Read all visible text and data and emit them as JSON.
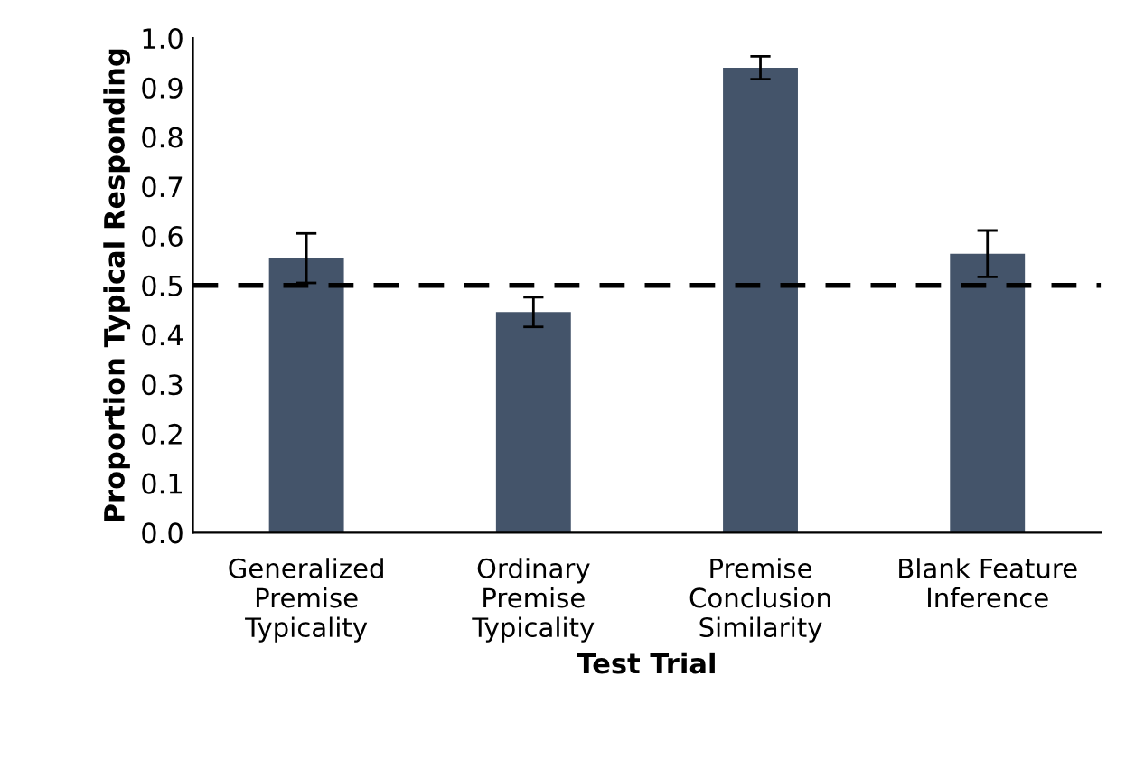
{
  "chart_data": {
    "type": "bar",
    "categories": [
      "Generalized\nPremise\nTypicality",
      "Ordinary\nPremise\nTypicality",
      "Premise\nConclusion\nSimilarity",
      "Blank Feature\nInference"
    ],
    "values": [
      0.555,
      0.446,
      0.94,
      0.564
    ],
    "errors": [
      0.05,
      0.03,
      0.023,
      0.047
    ],
    "color": "#44546a",
    "xlabel": "Test Trial",
    "ylabel": "Proportion Typical Responding",
    "ylim": [
      0,
      1.0
    ],
    "yticks": [
      {
        "value": 0,
        "label": "0.0"
      },
      0.1,
      0.2,
      0.3,
      0.4,
      0.5,
      0.6,
      0.7,
      0.8,
      0.9,
      {
        "value": 1,
        "label": "1.0"
      }
    ],
    "ref_lines": [
      {
        "axis": "y",
        "value": 0.5,
        "line_style": "dashed",
        "color": "#000000"
      }
    ],
    "grid": false,
    "legend": false
  }
}
